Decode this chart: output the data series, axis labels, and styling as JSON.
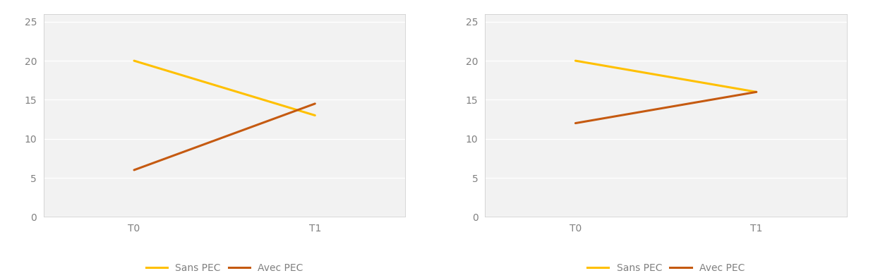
{
  "fig1": {
    "sans_pec": [
      20,
      13
    ],
    "avec_pec": [
      6,
      14.5
    ],
    "xticks": [
      "T0",
      "T1"
    ],
    "yticks": [
      0,
      5,
      10,
      15,
      20,
      25
    ],
    "ylim": [
      0,
      26
    ]
  },
  "fig2": {
    "sans_pec": [
      20,
      16
    ],
    "avec_pec": [
      12,
      16
    ],
    "xticks": [
      "T0",
      "T1"
    ],
    "yticks": [
      0,
      5,
      10,
      15,
      20,
      25
    ],
    "ylim": [
      0,
      26
    ]
  },
  "color_sans_pec": "#FFC000",
  "color_avec_pec": "#C55A11",
  "legend_sans_pec": "Sans PEC",
  "legend_avec_pec": "Avec PEC",
  "bg_color": "#FFFFFF",
  "plot_bg_color": "#F2F2F2",
  "grid_color": "#FFFFFF",
  "line_width": 2.2,
  "tick_label_color": "#808080",
  "tick_fontsize": 10,
  "legend_fontsize": 10,
  "border_color": "#D0D0D0",
  "xlim": [
    -0.5,
    1.5
  ],
  "x_positions": [
    0,
    1
  ]
}
